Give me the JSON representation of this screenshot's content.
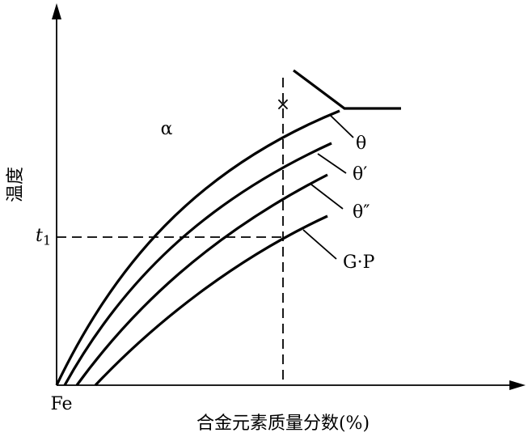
{
  "axes": {
    "y_label": "温度",
    "x_label": "合金元素质量分数(%)",
    "origin": "Fe",
    "t_label": "t",
    "t_subscript": "1"
  },
  "region": "α",
  "marker": "×",
  "curves": [
    {
      "label": "θ"
    },
    {
      "label": "θ′"
    },
    {
      "label": "θ″"
    },
    {
      "label": "G·P"
    }
  ]
}
